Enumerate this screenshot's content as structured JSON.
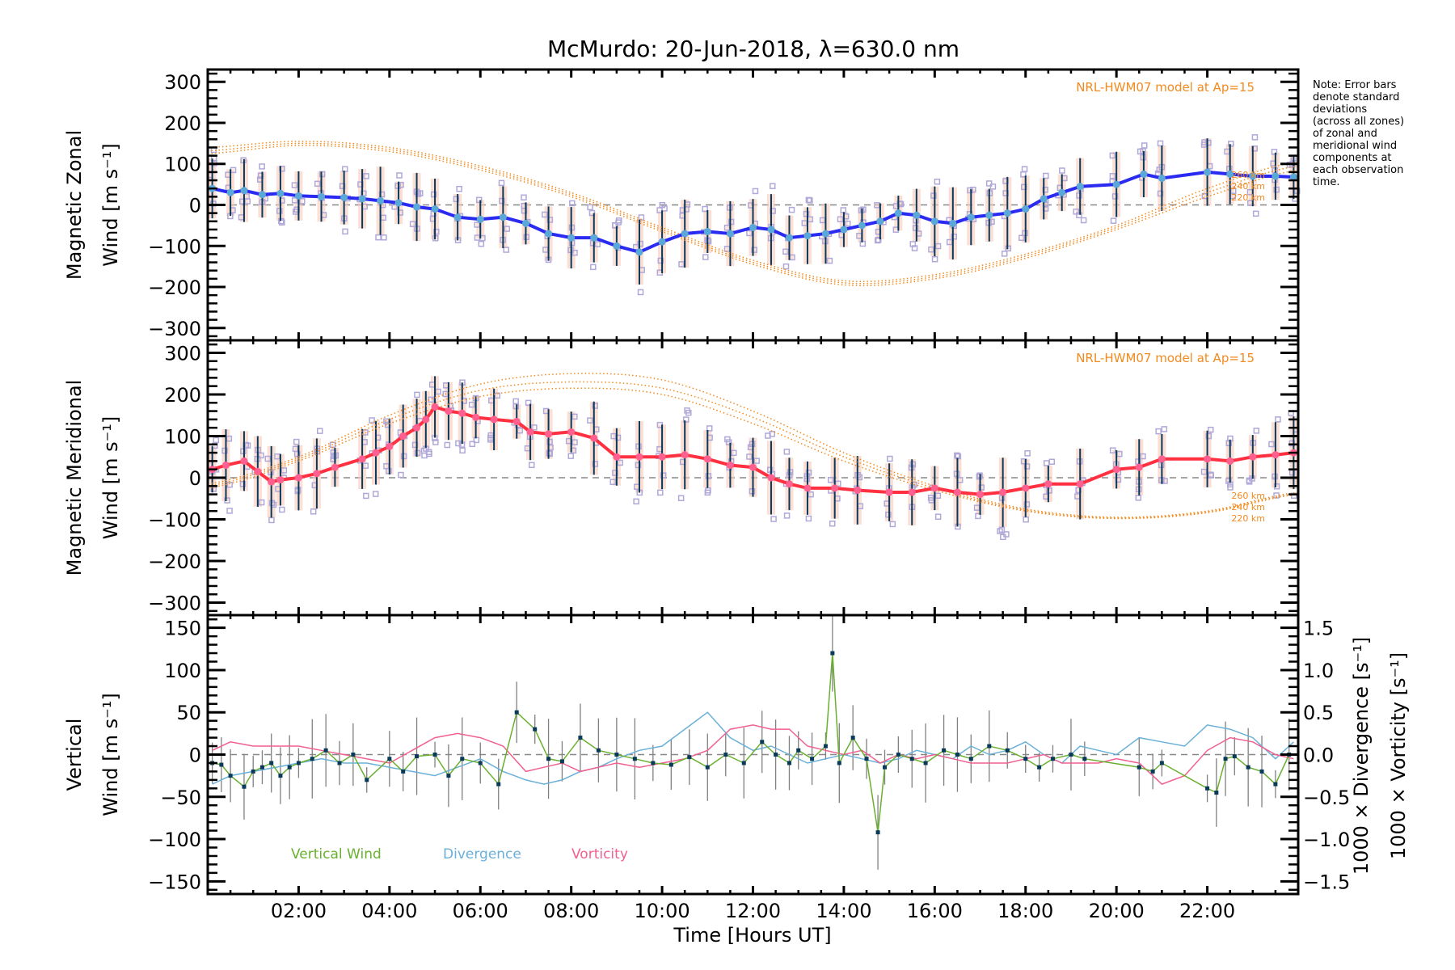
{
  "title": "McMurdo: 20-Jun-2018, λ=630.0 nm",
  "note": [
    "Note: Error bars",
    "denote standard",
    "deviations",
    "(across all zones)",
    "of zonal and",
    "meridional wind",
    "components at",
    "each observation",
    "time."
  ],
  "colors": {
    "zonal_line": "#2a2af0",
    "zonal_marker": "#5aa8d8",
    "meridional_line": "#ff3040",
    "meridional_marker": "#ff6090",
    "model": "#f28a1e",
    "scatter": "#b0a8d8",
    "errorbar": "#0a3a5a",
    "vertical": "#6ab030",
    "divergence": "#6ab0d8",
    "vorticity": "#f06090",
    "zero_line": "#888888",
    "vertical_error": "#808080"
  },
  "chart_data": [
    {
      "type": "line",
      "panel": "zonal",
      "ylabel": [
        "Magnetic Zonal",
        "Wind [m s⁻¹]"
      ],
      "ylim": [
        -330,
        330
      ],
      "yticks": [
        300,
        200,
        100,
        0,
        -100,
        -200,
        -300
      ],
      "ytick_labels": [
        "300",
        "200",
        "100",
        "0",
        "−100",
        "−200",
        "−300"
      ],
      "xlim": [
        0,
        24
      ],
      "model_label": "NRL-HWM07 model at Ap=15",
      "model_altitudes": [
        "260 km",
        "240 km",
        "220 km"
      ],
      "series": [
        {
          "name": "Zonal wind",
          "x": [
            0.1,
            0.5,
            0.8,
            1.2,
            1.6,
            2.0,
            2.5,
            3.0,
            3.4,
            3.8,
            4.2,
            4.6,
            5.0,
            5.5,
            6.0,
            6.5,
            7.0,
            7.5,
            8.0,
            8.5,
            9.0,
            9.5,
            10.0,
            10.5,
            11.0,
            11.5,
            12.0,
            12.4,
            12.8,
            13.2,
            13.6,
            14.0,
            14.4,
            14.8,
            15.2,
            15.6,
            16.0,
            16.4,
            16.8,
            17.2,
            17.6,
            18.0,
            18.4,
            18.8,
            19.2,
            20.0,
            20.6,
            21.0,
            22.0,
            22.5,
            23.0,
            23.5,
            23.9
          ],
          "y": [
            40,
            30,
            35,
            25,
            28,
            22,
            20,
            18,
            15,
            10,
            5,
            -5,
            -10,
            -30,
            -35,
            -30,
            -45,
            -70,
            -80,
            -80,
            -100,
            -115,
            -90,
            -70,
            -65,
            -70,
            -55,
            -60,
            -80,
            -75,
            -70,
            -60,
            -50,
            -40,
            -20,
            -25,
            -40,
            -45,
            -30,
            -25,
            -20,
            -10,
            15,
            30,
            45,
            50,
            75,
            65,
            80,
            75,
            70,
            70,
            68
          ]
        },
        {
          "name": "Model 260 km",
          "x": [
            0,
            2,
            4,
            6,
            8,
            10,
            12,
            14,
            16,
            18,
            20,
            22,
            24
          ],
          "y": [
            140,
            155,
            140,
            95,
            30,
            -55,
            -135,
            -185,
            -170,
            -120,
            -50,
            40,
            105
          ]
        },
        {
          "name": "Model 240 km",
          "x": [
            0,
            2,
            4,
            6,
            8,
            10,
            12,
            14,
            16,
            18,
            20,
            22,
            24
          ],
          "y": [
            132,
            150,
            135,
            90,
            25,
            -60,
            -140,
            -190,
            -175,
            -125,
            -55,
            30,
            95
          ]
        },
        {
          "name": "Model 220 km",
          "x": [
            0,
            2,
            4,
            6,
            8,
            10,
            12,
            14,
            16,
            18,
            20,
            22,
            24
          ],
          "y": [
            125,
            145,
            130,
            85,
            20,
            -65,
            -145,
            -195,
            -180,
            -130,
            -60,
            20,
            85
          ]
        }
      ]
    },
    {
      "type": "line",
      "panel": "meridional",
      "ylabel": [
        "Magnetic Meridional",
        "Wind [m s⁻¹]"
      ],
      "ylim": [
        -330,
        330
      ],
      "yticks": [
        300,
        200,
        100,
        0,
        -100,
        -200,
        -300
      ],
      "ytick_labels": [
        "300",
        "200",
        "100",
        "0",
        "−100",
        "−200",
        "−300"
      ],
      "xlim": [
        0,
        24
      ],
      "model_label": "NRL-HWM07 model at Ap=15",
      "model_altitudes": [
        "260 km",
        "240 km",
        "220 km"
      ],
      "series": [
        {
          "name": "Meridional wind",
          "x": [
            0.1,
            0.4,
            0.8,
            1.1,
            1.4,
            1.6,
            2.0,
            2.4,
            2.8,
            3.4,
            3.7,
            4.0,
            4.3,
            4.6,
            4.8,
            5.0,
            5.3,
            5.6,
            5.9,
            6.3,
            6.8,
            7.1,
            7.5,
            8.0,
            8.5,
            9.0,
            9.5,
            10.0,
            10.5,
            11.0,
            11.5,
            12.0,
            12.4,
            12.8,
            13.2,
            13.8,
            14.3,
            15.0,
            15.5,
            16.0,
            16.5,
            17.0,
            17.5,
            18.0,
            18.5,
            19.2,
            20.0,
            20.5,
            21.0,
            22.0,
            22.5,
            23.0,
            23.5,
            23.9
          ],
          "y": [
            20,
            30,
            40,
            15,
            -10,
            -5,
            0,
            10,
            25,
            45,
            60,
            75,
            100,
            120,
            140,
            170,
            160,
            155,
            145,
            140,
            135,
            110,
            105,
            110,
            95,
            50,
            50,
            50,
            55,
            45,
            30,
            25,
            0,
            -15,
            -25,
            -25,
            -30,
            -35,
            -35,
            -25,
            -35,
            -40,
            -35,
            -25,
            -15,
            -15,
            20,
            25,
            45,
            45,
            40,
            50,
            55,
            60
          ]
        },
        {
          "name": "Model 260 km",
          "x": [
            0,
            2,
            4,
            6,
            8,
            10,
            12,
            14,
            16,
            18,
            20,
            22,
            24
          ],
          "y": [
            -15,
            50,
            150,
            225,
            250,
            235,
            160,
            60,
            -20,
            -75,
            -95,
            -80,
            -35
          ]
        },
        {
          "name": "Model 240 km",
          "x": [
            0,
            2,
            4,
            6,
            8,
            10,
            12,
            14,
            16,
            18,
            20,
            22,
            24
          ],
          "y": [
            -20,
            45,
            140,
            210,
            230,
            215,
            145,
            50,
            -25,
            -78,
            -97,
            -82,
            -38
          ]
        },
        {
          "name": "Model 220 km",
          "x": [
            0,
            2,
            4,
            6,
            8,
            10,
            12,
            14,
            16,
            18,
            20,
            22,
            24
          ],
          "y": [
            -25,
            40,
            130,
            195,
            215,
            200,
            130,
            40,
            -30,
            -80,
            -98,
            -84,
            -40
          ]
        }
      ]
    },
    {
      "type": "line",
      "panel": "vertical",
      "ylabel_left": [
        "Vertical",
        "Wind [m s⁻¹]"
      ],
      "ylabel_right_div": "1000 × Divergence [s⁻¹]",
      "ylabel_right_vort": "1000 × Vorticity [s⁻¹]",
      "ylim": [
        -165,
        165
      ],
      "yticks": [
        150,
        100,
        50,
        0,
        -50,
        -100,
        -150
      ],
      "ytick_labels": [
        "150",
        "100",
        "50",
        "0",
        "−50",
        "−100",
        "−150"
      ],
      "ylim_right": [
        -1.65,
        1.65
      ],
      "yticks_right": [
        1.5,
        1.0,
        0.5,
        0.0,
        -0.5,
        -1.0,
        -1.5
      ],
      "ytick_labels_right": [
        "1.5",
        "1.0",
        "0.5",
        "0.0",
        "−0.5",
        "−1.0",
        "−1.5"
      ],
      "xlim": [
        0,
        24
      ],
      "xticks": [
        2,
        4,
        6,
        8,
        10,
        12,
        14,
        16,
        18,
        20,
        22
      ],
      "xtick_labels": [
        "02:00",
        "04:00",
        "06:00",
        "08:00",
        "10:00",
        "12:00",
        "14:00",
        "16:00",
        "18:00",
        "20:00",
        "22:00"
      ],
      "xlabel": "Time [Hours UT]",
      "legend": [
        "Vertical Wind",
        "Divergence",
        "Vorticity"
      ],
      "legend_position": "bottom-left",
      "series": [
        {
          "name": "Vertical Wind",
          "x": [
            0.1,
            0.3,
            0.5,
            0.8,
            1.0,
            1.2,
            1.4,
            1.6,
            1.8,
            2.0,
            2.3,
            2.6,
            2.9,
            3.2,
            3.5,
            4.0,
            4.3,
            4.6,
            5.0,
            5.3,
            5.6,
            6.0,
            6.4,
            6.8,
            7.2,
            7.5,
            7.8,
            8.2,
            8.6,
            9.0,
            9.4,
            9.8,
            10.2,
            10.6,
            11.0,
            11.4,
            11.8,
            12.2,
            12.5,
            12.8,
            13.0,
            13.3,
            13.6,
            13.75,
            13.9,
            14.2,
            14.5,
            14.75,
            14.9,
            15.2,
            15.5,
            15.8,
            16.2,
            16.5,
            16.8,
            17.2,
            17.6,
            18.0,
            18.3,
            18.6,
            19.0,
            19.3,
            20.5,
            20.8,
            21.0,
            22.0,
            22.2,
            22.4,
            22.6,
            22.9,
            23.2,
            23.5,
            23.8
          ],
          "y": [
            -10,
            -12,
            -25,
            -38,
            -20,
            -15,
            -10,
            -25,
            -15,
            -10,
            -5,
            5,
            -10,
            0,
            -30,
            -5,
            -20,
            -2,
            0,
            -25,
            -5,
            -10,
            -35,
            50,
            30,
            -5,
            -8,
            20,
            5,
            0,
            -5,
            -10,
            -12,
            -3,
            -15,
            0,
            -10,
            15,
            0,
            -10,
            5,
            -5,
            10,
            120,
            -10,
            20,
            -5,
            -92,
            -15,
            0,
            -5,
            -10,
            5,
            0,
            -5,
            10,
            5,
            -5,
            -15,
            -5,
            0,
            -5,
            -15,
            -20,
            -10,
            -40,
            -45,
            -5,
            -2,
            -15,
            -20,
            -35,
            0
          ]
        },
        {
          "name": "Divergence",
          "x": [
            0.1,
            0.5,
            1.0,
            1.5,
            2.0,
            2.5,
            3.0,
            3.5,
            4.0,
            4.5,
            5.0,
            5.5,
            6.0,
            6.5,
            7.0,
            7.4,
            7.8,
            8.2,
            8.6,
            9.0,
            9.5,
            10.0,
            10.5,
            11.0,
            11.5,
            12.0,
            12.4,
            12.8,
            13.2,
            13.6,
            14.0,
            14.4,
            14.8,
            15.2,
            15.6,
            16.0,
            16.4,
            16.8,
            17.2,
            17.6,
            18.0,
            18.4,
            18.8,
            19.2,
            19.6,
            20.0,
            20.5,
            21.0,
            21.5,
            22.0,
            22.5,
            23.0,
            23.5,
            23.9
          ],
          "y": [
            -0.35,
            -0.25,
            -0.2,
            -0.15,
            -0.1,
            -0.05,
            -0.1,
            -0.1,
            -0.15,
            -0.2,
            -0.25,
            -0.15,
            -0.05,
            -0.2,
            -0.3,
            -0.35,
            -0.3,
            -0.2,
            -0.15,
            -0.05,
            0.05,
            0.1,
            0.3,
            0.5,
            0.2,
            0.05,
            0.1,
            0.0,
            -0.1,
            -0.05,
            0.0,
            -0.05,
            -0.1,
            -0.05,
            0.05,
            0.0,
            -0.05,
            0.1,
            0.0,
            0.05,
            0.15,
            0.0,
            -0.1,
            0.1,
            0.05,
            0.0,
            0.2,
            0.15,
            0.1,
            0.35,
            0.3,
            0.2,
            -0.05,
            0.15
          ]
        },
        {
          "name": "Vorticity",
          "x": [
            0.1,
            0.5,
            1.0,
            1.5,
            2.0,
            2.5,
            3.0,
            3.5,
            4.0,
            4.5,
            5.0,
            5.5,
            6.0,
            6.5,
            7.0,
            7.4,
            7.8,
            8.2,
            8.6,
            9.0,
            9.5,
            10.0,
            10.5,
            11.0,
            11.5,
            12.0,
            12.4,
            12.8,
            13.2,
            13.6,
            14.0,
            14.4,
            14.8,
            15.2,
            15.6,
            16.0,
            16.4,
            16.8,
            17.2,
            17.6,
            18.0,
            18.4,
            18.8,
            19.2,
            19.6,
            20.0,
            20.5,
            21.0,
            21.5,
            22.0,
            22.5,
            23.0,
            23.5,
            23.9
          ],
          "y": [
            0.05,
            0.15,
            0.1,
            0.1,
            0.1,
            0.05,
            0.0,
            -0.05,
            -0.1,
            0.05,
            0.2,
            0.25,
            0.2,
            0.1,
            -0.2,
            -0.15,
            -0.1,
            -0.2,
            -0.15,
            -0.1,
            -0.15,
            -0.1,
            -0.05,
            0.05,
            0.3,
            0.35,
            0.3,
            0.3,
            0.1,
            0.05,
            0.0,
            0.05,
            -0.1,
            0.0,
            -0.05,
            0.0,
            -0.05,
            -0.1,
            -0.1,
            -0.1,
            -0.05,
            0.0,
            -0.1,
            -0.1,
            -0.1,
            -0.05,
            -0.1,
            -0.35,
            -0.25,
            0.05,
            0.2,
            0.15,
            0.0,
            -0.05
          ]
        }
      ]
    }
  ]
}
